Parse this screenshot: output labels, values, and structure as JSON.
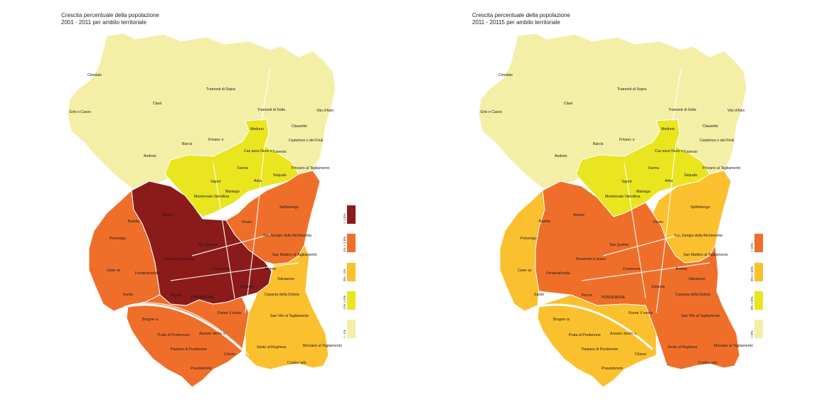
{
  "maps": [
    {
      "title_line1": "Crescita percentuale della popolazione",
      "title_line2": "2001 - 2011 per ambito territoriale",
      "legend": [
        {
          "label": "> 1,5%",
          "color": "#8b1a1a"
        },
        {
          "label": "1% > 1,5%",
          "color": "#ef6f2a"
        },
        {
          "label": "0% - 1%",
          "color": "#fbc02d"
        },
        {
          "label": "-1% > 0%",
          "color": "#e9e51f"
        },
        {
          "label": "< -1%",
          "color": "#f3efa6"
        }
      ]
    },
    {
      "title_line1": "Crescita percentuale della popolazione",
      "title_line2": "2011 - 20115 per ambito territoriale",
      "legend": [
        {
          "label": "> 10%",
          "color": "#ef6f2a"
        },
        {
          "label": "5% > 10%",
          "color": "#fbc02d"
        },
        {
          "label": "0% > 5%",
          "color": "#e9e51f"
        },
        {
          "label": "< 0%",
          "color": "#f3efa6"
        }
      ]
    }
  ],
  "places": [
    "Cimolais",
    "Tramonti di Sopra",
    "Claut",
    "Erto e Casso",
    "Tramonti di Sotto",
    "Vito d'Asio",
    "Meduno",
    "Clauzetto",
    "Frisanc o",
    "Barcis",
    "Castelnov o del Friuli",
    "Andreis",
    "Cav asso Nuov o",
    "Travesio",
    "Fanna",
    "Sequals",
    "Pinzano al Tagliamento",
    "Vajont",
    "Arba",
    "Maniago",
    "Montereale Valcellina",
    "Spilimbergo",
    "Aviano",
    "Budoia",
    "Vivaro",
    "San Quirino",
    "Polcenigo",
    "San Giorgio della Richinvelda",
    "Roveredo in piano",
    "San Martino al Tagliamento",
    "Cane va",
    "Fontanafredda",
    "Cordenons",
    "Arzene",
    "Valvasone",
    "Zoppola",
    "Sacile",
    "Porcia",
    "PORDENONE",
    "Casarsa della Delizia",
    "Fiume V eneto",
    "Brugne ra",
    "San Vito al Tagliamento",
    "Prata di Pordenone",
    "Azzano decim o",
    "Pasiano di Pordenone",
    "Chions",
    "Sesto al Reghena",
    "Morsano al Tagliamento",
    "Pravisdomini",
    "Cordov ado"
  ]
}
